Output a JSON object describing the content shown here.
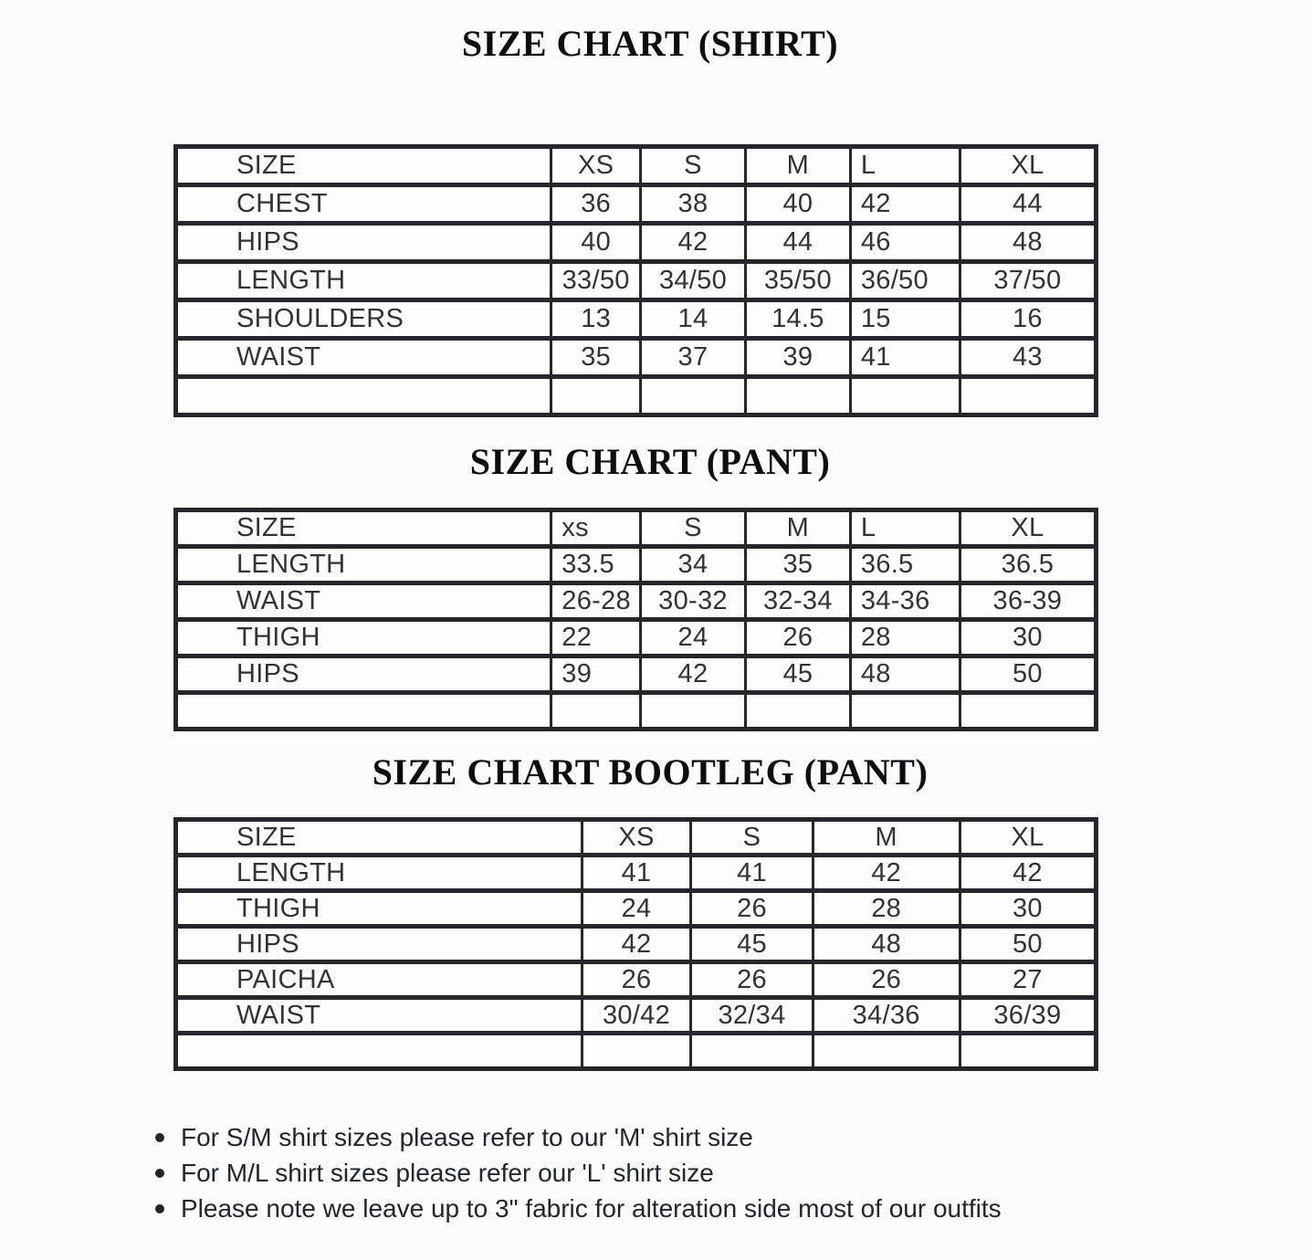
{
  "colors": {
    "background": "#fcfcfc",
    "table_border": "#26262c",
    "table_text": "#323237",
    "title_text": "#0d0d10",
    "note_text": "#22252c"
  },
  "sections": [
    {
      "title": "SIZE CHART (SHIRT)",
      "columns": [
        "SIZE",
        "XS",
        "S",
        "M",
        "L",
        "XL"
      ],
      "rows": [
        {
          "label": "CHEST",
          "values": [
            "36",
            "38",
            "40",
            "42",
            "44"
          ]
        },
        {
          "label": "HIPS",
          "values": [
            "40",
            "42",
            "44",
            "46",
            "48"
          ]
        },
        {
          "label": "LENGTH",
          "values": [
            "33/50",
            "34/50",
            "35/50",
            "36/50",
            "37/50"
          ]
        },
        {
          "label": "SHOULDERS",
          "values": [
            "13",
            "14",
            "14.5",
            "15",
            "16"
          ]
        },
        {
          "label": "WAIST",
          "values": [
            "35",
            "37",
            "39",
            "41",
            "43"
          ]
        },
        {
          "label": "",
          "values": [
            "",
            "",
            "",
            "",
            ""
          ]
        }
      ]
    },
    {
      "title": "SIZE CHART (PANT)",
      "columns": [
        "SIZE",
        "xs",
        "S",
        "M",
        "L",
        "XL"
      ],
      "rows": [
        {
          "label": "LENGTH",
          "values": [
            "33.5",
            "34",
            "35",
            "36.5",
            "36.5"
          ]
        },
        {
          "label": "WAIST",
          "values": [
            "26-28",
            "30-32",
            "32-34",
            "34-36",
            "36-39"
          ]
        },
        {
          "label": "THIGH",
          "values": [
            "22",
            "24",
            "26",
            "28",
            "30"
          ]
        },
        {
          "label": "HIPS",
          "values": [
            "39",
            "42",
            "45",
            "48",
            "50"
          ]
        },
        {
          "label": "",
          "values": [
            "",
            "",
            "",
            "",
            ""
          ]
        }
      ]
    },
    {
      "title": "SIZE CHART BOOTLEG (PANT)",
      "columns": [
        "SIZE",
        "XS",
        "S",
        "M",
        "XL"
      ],
      "rows": [
        {
          "label": "LENGTH",
          "values": [
            "41",
            "41",
            "42",
            "42"
          ]
        },
        {
          "label": "THIGH",
          "values": [
            "24",
            "26",
            "28",
            "30"
          ]
        },
        {
          "label": "HIPS",
          "values": [
            "42",
            "45",
            "48",
            "50"
          ]
        },
        {
          "label": "PAICHA",
          "values": [
            "26",
            "26",
            "26",
            "27"
          ]
        },
        {
          "label": "WAIST",
          "values": [
            "30/42",
            "32/34",
            "34/36",
            "36/39"
          ]
        },
        {
          "label": "",
          "values": [
            "",
            "",
            "",
            ""
          ]
        }
      ]
    }
  ],
  "notes": [
    "For S/M shirt sizes please refer to our 'M' shirt size",
    "For M/L shirt sizes please refer our 'L' shirt size",
    "Please note we leave up to 3\" fabric for alteration side most of our outfits"
  ]
}
